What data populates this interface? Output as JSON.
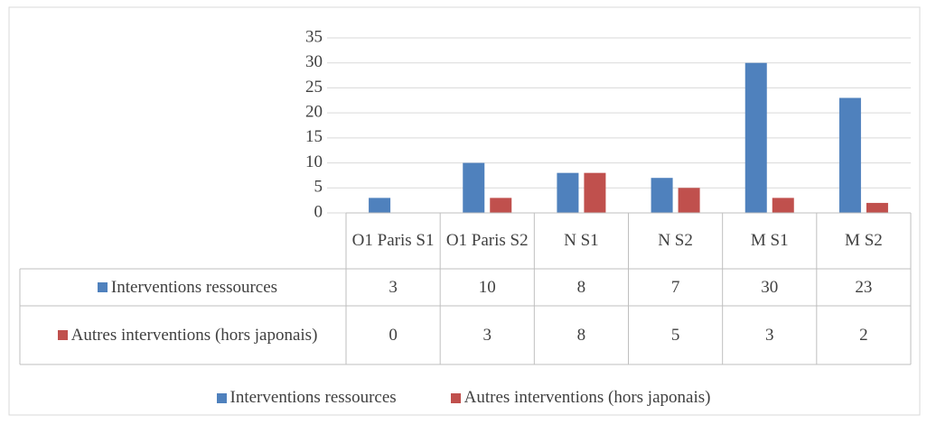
{
  "chart_data": {
    "type": "bar",
    "categories": [
      "O1 Paris S1",
      "O1 Paris S2",
      "N S1",
      "N S2",
      "M S1",
      "M S2"
    ],
    "series": [
      {
        "name": "Interventions ressources",
        "color": "#4f81bd",
        "values": [
          3,
          10,
          8,
          7,
          30,
          23
        ]
      },
      {
        "name": "Autres interventions (hors japonais)",
        "color": "#c0504d",
        "values": [
          0,
          3,
          8,
          5,
          3,
          2
        ]
      }
    ],
    "ylim": [
      0,
      35
    ],
    "yticks": [
      0,
      5,
      10,
      15,
      20,
      25,
      30,
      35
    ],
    "grid": true,
    "legend": "bottom",
    "data_table": true
  }
}
